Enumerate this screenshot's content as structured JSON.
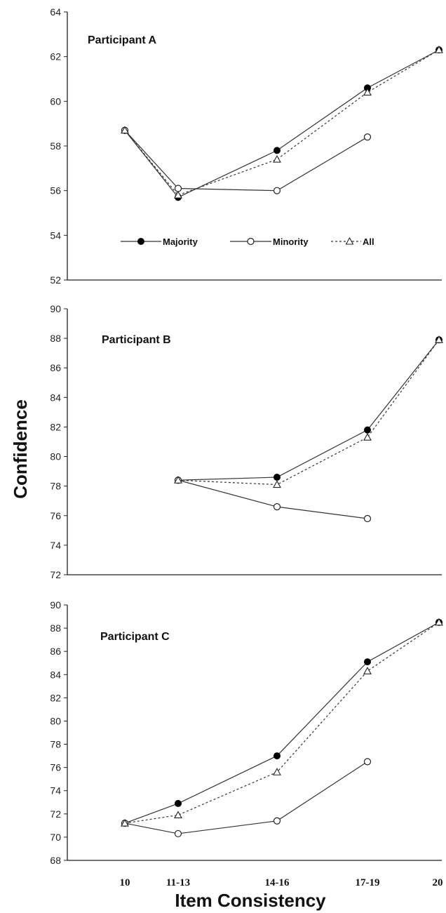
{
  "chart_data": {
    "type": "line",
    "ylabel": "Confidence",
    "xlabel": "Item Consistency",
    "categories": [
      "10",
      "11-13",
      "14-16",
      "17-19",
      "20"
    ],
    "legend": {
      "placement": "inside-bottom of first panel",
      "entries": [
        {
          "label": "Majority",
          "marker": "filled-circle",
          "line": "solid"
        },
        {
          "label": "Minority",
          "marker": "open-circle",
          "line": "solid"
        },
        {
          "label": "All",
          "marker": "open-triangle",
          "line": "dotted"
        }
      ]
    },
    "panels": [
      {
        "title": "Participant A",
        "ylim": [
          52,
          64
        ],
        "yticks": [
          52,
          54,
          56,
          58,
          60,
          62,
          64
        ],
        "series": [
          {
            "name": "Majority",
            "values": [
              58.7,
              55.7,
              57.8,
              60.6,
              62.3
            ]
          },
          {
            "name": "Minority",
            "values": [
              58.7,
              56.1,
              56.0,
              58.4,
              null
            ]
          },
          {
            "name": "All",
            "values": [
              58.7,
              55.8,
              57.4,
              60.4,
              62.3
            ]
          }
        ]
      },
      {
        "title": "Participant B",
        "ylim": [
          72,
          90
        ],
        "yticks": [
          72,
          74,
          76,
          78,
          80,
          82,
          84,
          86,
          88,
          90
        ],
        "series": [
          {
            "name": "Majority",
            "values": [
              null,
              78.4,
              78.6,
              81.8,
              87.9
            ]
          },
          {
            "name": "Minority",
            "values": [
              null,
              78.4,
              76.6,
              75.8,
              null
            ]
          },
          {
            "name": "All",
            "values": [
              null,
              78.4,
              78.1,
              81.3,
              87.9
            ]
          }
        ]
      },
      {
        "title": "Participant C",
        "ylim": [
          68,
          90
        ],
        "yticks": [
          68,
          70,
          72,
          74,
          76,
          78,
          80,
          82,
          84,
          86,
          88,
          90
        ],
        "series": [
          {
            "name": "Majority",
            "values": [
              71.2,
              72.9,
              77.0,
              85.1,
              88.5
            ]
          },
          {
            "name": "Minority",
            "values": [
              71.2,
              70.3,
              71.4,
              76.5,
              null
            ]
          },
          {
            "name": "All",
            "values": [
              71.2,
              71.9,
              75.6,
              84.3,
              88.5
            ]
          }
        ]
      }
    ]
  }
}
